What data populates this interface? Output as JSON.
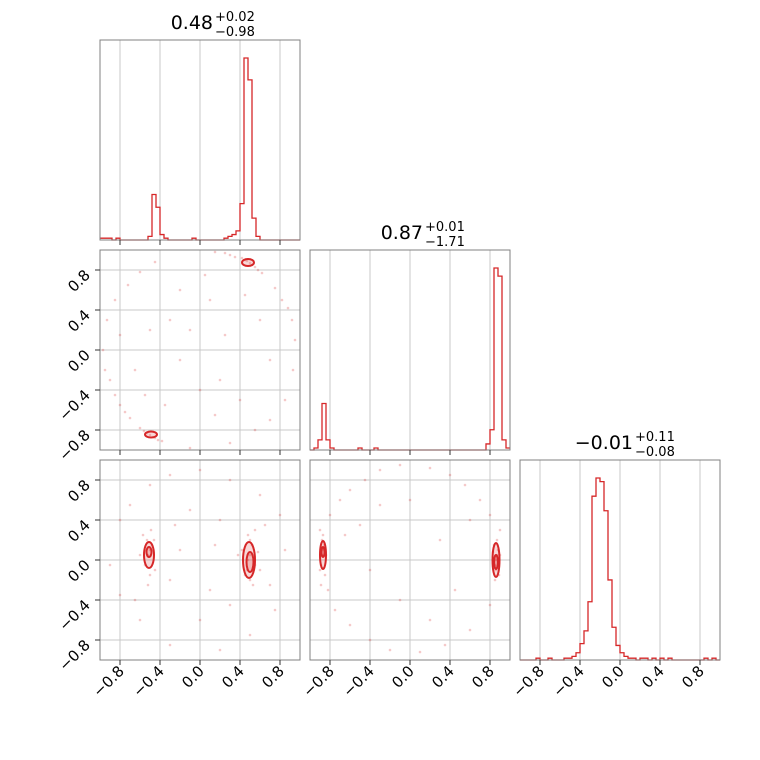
{
  "figure": {
    "accent_color": "#d62728",
    "axis_range": [
      -1,
      1
    ],
    "tick_values": [
      -0.8,
      -0.4,
      0.0,
      0.4,
      0.8
    ],
    "tick_labels": [
      "−0.8",
      "−0.4",
      "0.0",
      "0.4",
      "0.8"
    ]
  },
  "chart_data": {
    "type": "corner",
    "grid": true,
    "parameters": [
      {
        "title_value": "0.48",
        "title_upper": "+0.02",
        "title_lower": "−0.98",
        "histogram": {
          "type": "bar",
          "x_start": -1.0,
          "bin_width": 0.04,
          "counts": [
            1,
            1,
            1,
            0,
            1,
            0,
            0,
            0,
            0,
            0,
            0,
            0,
            2,
            25,
            18,
            3,
            1,
            0,
            0,
            0,
            0,
            0,
            0,
            1,
            0,
            0,
            0,
            0,
            0,
            0,
            0,
            1,
            2,
            3,
            5,
            20,
            100,
            88,
            12,
            2,
            0,
            0,
            0,
            0,
            0,
            0,
            0,
            0,
            0,
            0
          ]
        }
      },
      {
        "title_value": "0.87",
        "title_upper": "+0.01",
        "title_lower": "−1.71",
        "histogram": {
          "type": "bar",
          "x_start": -1.0,
          "bin_width": 0.04,
          "counts": [
            0,
            1,
            5,
            23,
            5,
            1,
            0,
            0,
            0,
            0,
            0,
            0,
            1,
            0,
            0,
            0,
            1,
            0,
            0,
            0,
            0,
            0,
            0,
            0,
            0,
            0,
            0,
            0,
            0,
            0,
            0,
            0,
            0,
            0,
            0,
            0,
            0,
            0,
            0,
            0,
            0,
            0,
            0,
            0,
            3,
            10,
            90,
            86,
            5,
            1
          ]
        }
      },
      {
        "title_value": "−0.01",
        "title_upper": "+0.11",
        "title_lower": "−0.08",
        "histogram": {
          "type": "bar",
          "x_start": -1.0,
          "bin_width": 0.04,
          "counts": [
            0,
            0,
            0,
            0,
            1,
            0,
            0,
            1,
            0,
            0,
            0,
            1,
            1,
            2,
            4,
            9,
            16,
            32,
            90,
            100,
            98,
            82,
            44,
            18,
            8,
            4,
            2,
            1,
            1,
            0,
            1,
            1,
            0,
            1,
            0,
            1,
            0,
            1,
            0,
            0,
            0,
            0,
            0,
            0,
            0,
            0,
            1,
            0,
            1,
            0
          ]
        }
      }
    ],
    "joint": [
      {
        "x_param": 0,
        "y_param": 1,
        "scatter": [
          [
            0.47,
            0.89
          ],
          [
            0.5,
            0.87
          ],
          [
            0.52,
            0.85
          ],
          [
            0.45,
            0.9
          ],
          [
            0.55,
            0.83
          ],
          [
            0.42,
            0.92
          ],
          [
            0.58,
            0.8
          ],
          [
            0.3,
            0.95
          ],
          [
            0.15,
            0.98
          ],
          [
            0.35,
            0.93
          ],
          [
            0.62,
            0.77
          ],
          [
            0.25,
            0.97
          ],
          [
            -0.47,
            -0.87
          ],
          [
            -0.5,
            -0.85
          ],
          [
            -0.45,
            -0.88
          ],
          [
            -0.53,
            -0.83
          ],
          [
            -0.42,
            -0.9
          ],
          [
            -0.56,
            -0.81
          ],
          [
            -0.6,
            -0.78
          ],
          [
            -0.38,
            -0.91
          ],
          [
            -0.7,
            -0.68
          ],
          [
            -0.75,
            -0.62
          ],
          [
            -0.8,
            -0.55
          ],
          [
            -0.85,
            -0.45
          ],
          [
            -0.9,
            -0.3
          ],
          [
            -0.95,
            -0.2
          ],
          [
            -0.97,
            0.0
          ],
          [
            -0.93,
            0.3
          ],
          [
            -0.85,
            0.5
          ],
          [
            -0.72,
            0.65
          ],
          [
            -0.6,
            0.78
          ],
          [
            -0.45,
            0.88
          ],
          [
            0.75,
            0.62
          ],
          [
            0.82,
            0.5
          ],
          [
            0.88,
            0.42
          ],
          [
            0.92,
            0.3
          ],
          [
            0.95,
            0.1
          ],
          [
            0.93,
            -0.2
          ],
          [
            0.85,
            -0.5
          ],
          [
            0.7,
            -0.7
          ],
          [
            0.55,
            -0.8
          ],
          [
            0.3,
            -0.93
          ],
          [
            -0.1,
            -0.98
          ],
          [
            -0.3,
            0.3
          ],
          [
            -0.2,
            -0.1
          ],
          [
            0.1,
            0.5
          ],
          [
            0.2,
            -0.3
          ],
          [
            -0.5,
            0.2
          ],
          [
            0.6,
            0.3
          ],
          [
            -0.2,
            0.6
          ],
          [
            0.4,
            -0.5
          ],
          [
            0.0,
            -0.4
          ],
          [
            -0.65,
            -0.2
          ],
          [
            0.7,
            -0.1
          ],
          [
            -0.1,
            0.2
          ],
          [
            0.25,
            0.15
          ],
          [
            -0.35,
            -0.55
          ],
          [
            0.15,
            -0.65
          ],
          [
            -0.8,
            0.15
          ],
          [
            0.45,
            0.55
          ],
          [
            -0.55,
            -0.45
          ],
          [
            0.05,
            0.75
          ]
        ],
        "contours": [
          {
            "cx": 0.48,
            "cy": 0.875,
            "rx": 0.06,
            "ry": 0.035
          },
          {
            "cx": -0.49,
            "cy": -0.845,
            "rx": 0.06,
            "ry": 0.03
          }
        ]
      },
      {
        "x_param": 0,
        "y_param": 2,
        "scatter": [
          [
            -0.52,
            0.05
          ],
          [
            -0.5,
            0.1
          ],
          [
            -0.55,
            -0.05
          ],
          [
            -0.48,
            0.15
          ],
          [
            -0.53,
            0.2
          ],
          [
            -0.5,
            -0.15
          ],
          [
            -0.57,
            0.25
          ],
          [
            -0.45,
            -0.1
          ],
          [
            -0.6,
            0.05
          ],
          [
            -0.49,
            0.3
          ],
          [
            -0.52,
            -0.25
          ],
          [
            -0.46,
            0.2
          ],
          [
            0.48,
            0.0
          ],
          [
            0.5,
            0.05
          ],
          [
            0.47,
            -0.1
          ],
          [
            0.52,
            0.15
          ],
          [
            0.45,
            -0.15
          ],
          [
            0.5,
            0.2
          ],
          [
            0.55,
            -0.05
          ],
          [
            0.42,
            0.1
          ],
          [
            0.5,
            -0.2
          ],
          [
            0.48,
            0.25
          ],
          [
            0.53,
            -0.25
          ],
          [
            0.58,
            0.08
          ],
          [
            0.6,
            -0.1
          ],
          [
            0.38,
            0.05
          ],
          [
            0.55,
            0.3
          ],
          [
            -0.8,
            0.4
          ],
          [
            -0.7,
            0.55
          ],
          [
            -0.5,
            0.75
          ],
          [
            -0.3,
            0.85
          ],
          [
            0.0,
            0.9
          ],
          [
            0.3,
            0.8
          ],
          [
            0.6,
            0.65
          ],
          [
            0.8,
            0.45
          ],
          [
            -0.8,
            -0.35
          ],
          [
            -0.6,
            -0.6
          ],
          [
            -0.3,
            -0.85
          ],
          [
            0.2,
            -0.9
          ],
          [
            0.5,
            -0.75
          ],
          [
            0.75,
            -0.5
          ],
          [
            -0.2,
            0.1
          ],
          [
            0.1,
            -0.3
          ],
          [
            -0.3,
            -0.2
          ],
          [
            0.2,
            0.4
          ],
          [
            0.0,
            -0.6
          ],
          [
            -0.1,
            0.5
          ],
          [
            0.3,
            -0.45
          ],
          [
            0.85,
            0.1
          ],
          [
            -0.9,
            -0.05
          ],
          [
            0.65,
            0.35
          ],
          [
            -0.65,
            -0.4
          ],
          [
            0.15,
            0.15
          ],
          [
            -0.25,
            0.35
          ],
          [
            0.7,
            -0.25
          ]
        ],
        "contours": [
          {
            "cx": -0.51,
            "cy": 0.05,
            "rx": 0.05,
            "ry": 0.13
          },
          {
            "cx": -0.51,
            "cy": 0.08,
            "rx": 0.025,
            "ry": 0.05
          },
          {
            "cx": 0.49,
            "cy": 0.0,
            "rx": 0.06,
            "ry": 0.18
          },
          {
            "cx": 0.5,
            "cy": -0.02,
            "rx": 0.035,
            "ry": 0.1
          }
        ]
      },
      {
        "x_param": 1,
        "y_param": 2,
        "scatter": [
          [
            -0.88,
            0.05
          ],
          [
            -0.87,
            0.1
          ],
          [
            -0.89,
            -0.05
          ],
          [
            -0.86,
            0.15
          ],
          [
            -0.88,
            0.2
          ],
          [
            -0.9,
            -0.1
          ],
          [
            -0.85,
            -0.15
          ],
          [
            -0.87,
            0.25
          ],
          [
            -0.9,
            0.3
          ],
          [
            -0.84,
            0.05
          ],
          [
            -0.89,
            -0.25
          ],
          [
            0.86,
            0.0
          ],
          [
            0.87,
            0.05
          ],
          [
            0.85,
            -0.05
          ],
          [
            0.88,
            0.1
          ],
          [
            0.86,
            -0.1
          ],
          [
            0.84,
            0.15
          ],
          [
            0.89,
            -0.15
          ],
          [
            0.87,
            0.2
          ],
          [
            0.85,
            -0.2
          ],
          [
            0.9,
            0.05
          ],
          [
            0.83,
            0.08
          ],
          [
            -0.8,
            0.45
          ],
          [
            -0.7,
            0.6
          ],
          [
            -0.6,
            0.7
          ],
          [
            -0.45,
            0.8
          ],
          [
            -0.3,
            0.9
          ],
          [
            -0.1,
            0.95
          ],
          [
            0.2,
            0.92
          ],
          [
            0.4,
            0.85
          ],
          [
            0.55,
            0.75
          ],
          [
            0.7,
            0.6
          ],
          [
            0.8,
            0.45
          ],
          [
            0.9,
            0.3
          ],
          [
            -0.82,
            -0.3
          ],
          [
            -0.75,
            -0.5
          ],
          [
            -0.6,
            -0.65
          ],
          [
            -0.4,
            -0.8
          ],
          [
            -0.2,
            -0.9
          ],
          [
            0.1,
            -0.92
          ],
          [
            0.35,
            -0.85
          ],
          [
            0.6,
            -0.7
          ],
          [
            0.8,
            -0.45
          ],
          [
            -0.5,
            0.35
          ],
          [
            0.3,
            0.2
          ],
          [
            -0.1,
            -0.4
          ],
          [
            0.45,
            -0.3
          ],
          [
            -0.3,
            0.55
          ],
          [
            0.6,
            0.4
          ],
          [
            -0.65,
            0.25
          ],
          [
            0.0,
            0.6
          ],
          [
            0.2,
            -0.6
          ],
          [
            -0.4,
            -0.1
          ]
        ],
        "contours": [
          {
            "cx": -0.87,
            "cy": 0.05,
            "rx": 0.03,
            "ry": 0.14
          },
          {
            "cx": -0.87,
            "cy": 0.08,
            "rx": 0.015,
            "ry": 0.05
          },
          {
            "cx": 0.86,
            "cy": 0.0,
            "rx": 0.035,
            "ry": 0.17
          },
          {
            "cx": 0.86,
            "cy": -0.02,
            "rx": 0.018,
            "ry": 0.07
          }
        ]
      }
    ]
  }
}
